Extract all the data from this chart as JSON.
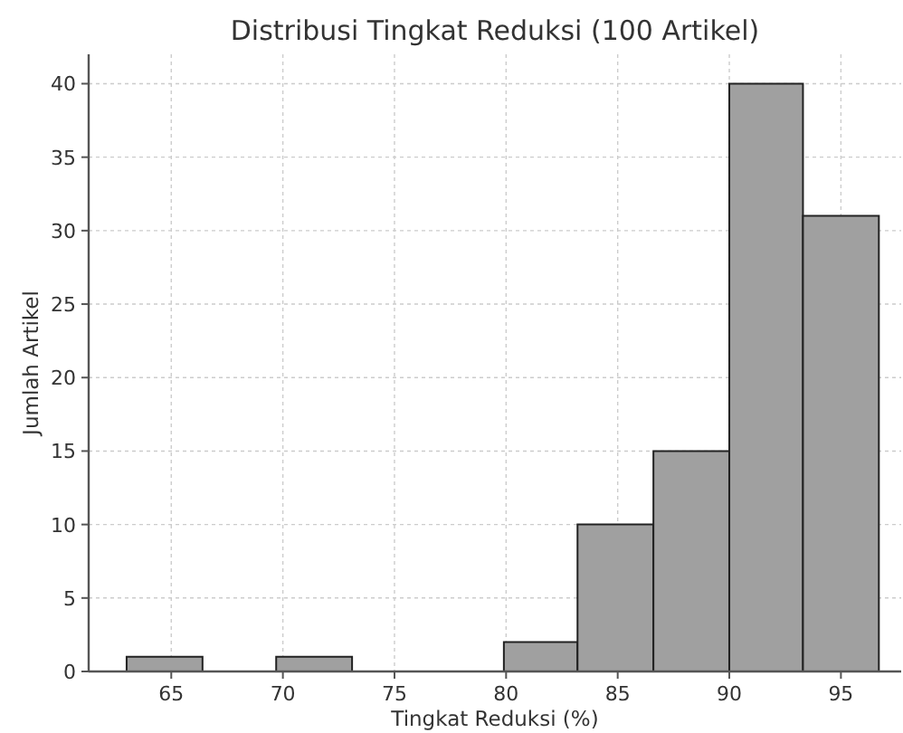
{
  "chart_data": {
    "type": "histogram",
    "title": "Distribusi Tingkat Reduksi (100 Artikel)",
    "xlabel": "Tingkat Reduksi (%)",
    "ylabel": "Jumlah Artikel",
    "bins": [
      63.0,
      66.4,
      69.7,
      73.1,
      76.5,
      79.9,
      83.2,
      86.6,
      90.0,
      93.3,
      96.7
    ],
    "values": [
      1,
      0,
      1,
      0,
      0,
      2,
      10,
      15,
      40,
      31
    ],
    "color": "#a0a0a0",
    "xlim": [
      61.3,
      97.7
    ],
    "ylim": [
      0,
      42
    ],
    "xticks": [
      65,
      70,
      75,
      80,
      85,
      90,
      95
    ],
    "yticks": [
      0,
      5,
      10,
      15,
      20,
      25,
      30,
      35,
      40
    ],
    "grid": true
  }
}
